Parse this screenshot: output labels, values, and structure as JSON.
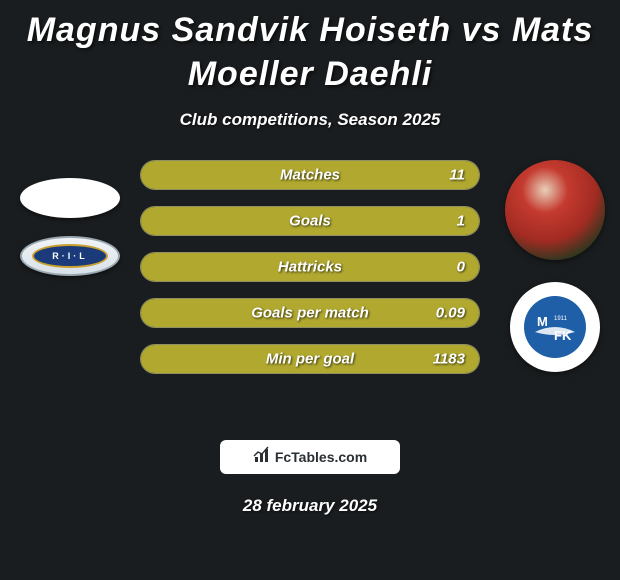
{
  "title": "Magnus Sandvik Hoiseth vs Mats Moeller Daehli",
  "subtitle": "Club competitions, Season 2025",
  "date": "28 february 2025",
  "brand": "FcTables.com",
  "left_badge_text": "R·I·L",
  "right_badge_year": "1911",
  "colors": {
    "background": "#1a1d1f",
    "bar_fill": "#b1a92f",
    "bar_track": "#6a6a2a",
    "text": "#ffffff",
    "brand_bg": "#ffffff",
    "brand_text": "#2a2f33",
    "right_badge_inner": "#1e5fa8"
  },
  "stats": [
    {
      "label": "Matches",
      "value_right": "11",
      "fill_pct": 100
    },
    {
      "label": "Goals",
      "value_right": "1",
      "fill_pct": 100
    },
    {
      "label": "Hattricks",
      "value_right": "0",
      "fill_pct": 100
    },
    {
      "label": "Goals per match",
      "value_right": "0.09",
      "fill_pct": 100
    },
    {
      "label": "Min per goal",
      "value_right": "1183",
      "fill_pct": 100
    }
  ]
}
